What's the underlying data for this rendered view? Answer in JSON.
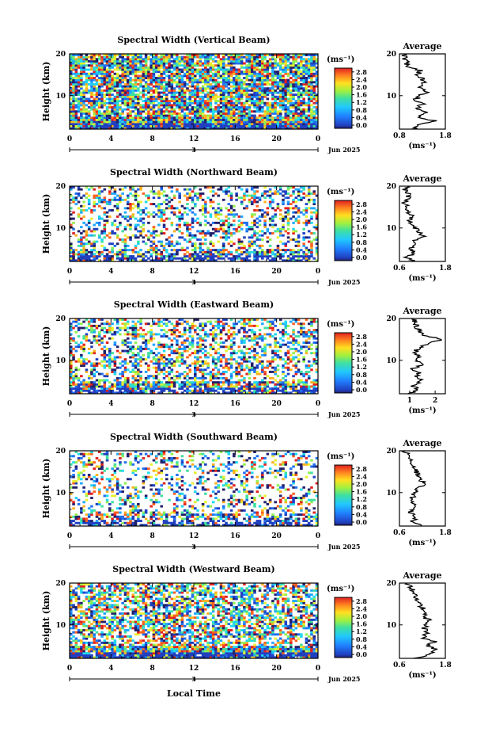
{
  "figure": {
    "xlabel": "Local Time",
    "date_label": "Jun 2025"
  },
  "chart_data": [
    {
      "type": "heatmap",
      "title": "Spectral Width (Vertical Beam)",
      "ylabel": "Height (km)",
      "xlim": [
        0,
        24
      ],
      "ylim": [
        2,
        20
      ],
      "x_ticks": [
        "0",
        "4",
        "8",
        "12",
        "16",
        "20",
        "0"
      ],
      "y_ticks": [
        {
          "v": 10,
          "label": "10"
        },
        {
          "v": 20,
          "label": "20"
        }
      ],
      "day_marker": "3",
      "colorbar": {
        "unit": "(ms⁻¹)",
        "labels": [
          "2.8",
          "2.4",
          "2.0",
          "1.6",
          "1.2",
          "0.8",
          "0.4",
          "0.0"
        ],
        "range": [
          0,
          3
        ]
      },
      "coverage": 0.85,
      "seed": 11,
      "bias": 0.5,
      "average": {
        "title": "Average",
        "xlim": [
          0.8,
          1.8
        ],
        "xticks": [
          "0.8",
          "1.8"
        ],
        "xlabel": "(ms⁻¹)",
        "profile": [
          [
            2,
            1.1
          ],
          [
            3,
            1.25
          ],
          [
            4,
            1.55
          ],
          [
            5,
            1.2
          ],
          [
            6,
            1.35
          ],
          [
            7,
            1.2
          ],
          [
            8,
            1.3
          ],
          [
            9,
            1.15
          ],
          [
            10,
            1.25
          ],
          [
            11,
            1.4
          ],
          [
            12,
            1.2
          ],
          [
            13,
            1.35
          ],
          [
            14,
            1.3
          ],
          [
            15,
            1.2
          ],
          [
            16,
            1.25
          ],
          [
            17,
            1.0
          ],
          [
            18,
            0.95
          ],
          [
            19,
            0.92
          ],
          [
            20,
            0.9
          ]
        ]
      }
    },
    {
      "type": "heatmap",
      "title": "Spectral Width (Northward Beam)",
      "ylabel": "Height (km)",
      "xlim": [
        0,
        24
      ],
      "ylim": [
        2,
        20
      ],
      "x_ticks": [
        "0",
        "4",
        "8",
        "12",
        "16",
        "20",
        "0"
      ],
      "y_ticks": [
        {
          "v": 10,
          "label": "10"
        },
        {
          "v": 20,
          "label": "20"
        }
      ],
      "day_marker": "3",
      "colorbar": {
        "unit": "(ms⁻¹)",
        "labels": [
          "2.8",
          "2.4",
          "2.0",
          "1.6",
          "1.2",
          "0.8",
          "0.4",
          "0.0"
        ],
        "range": [
          0,
          3
        ]
      },
      "coverage": 0.35,
      "seed": 23,
      "bias": 0.3,
      "average": {
        "title": "Average",
        "xlim": [
          0.6,
          1.8
        ],
        "xticks": [
          "0.6",
          "1.8"
        ],
        "xlabel": "(ms⁻¹)",
        "profile": [
          [
            2,
            0.95
          ],
          [
            3,
            0.8
          ],
          [
            4,
            1.0
          ],
          [
            5,
            0.85
          ],
          [
            6,
            1.05
          ],
          [
            7,
            0.95
          ],
          [
            8,
            1.2
          ],
          [
            9,
            1.1
          ],
          [
            10,
            1.0
          ],
          [
            11,
            0.95
          ],
          [
            12,
            0.85
          ],
          [
            13,
            0.9
          ],
          [
            14,
            0.8
          ],
          [
            15,
            0.85
          ],
          [
            16,
            0.75
          ],
          [
            17,
            0.8
          ],
          [
            18,
            0.85
          ],
          [
            19,
            0.75
          ],
          [
            20,
            0.8
          ]
        ]
      }
    },
    {
      "type": "heatmap",
      "title": "Spectral Width (Eastward Beam)",
      "ylabel": "Height (km)",
      "xlim": [
        0,
        24
      ],
      "ylim": [
        2,
        20
      ],
      "x_ticks": [
        "0",
        "4",
        "8",
        "12",
        "16",
        "20",
        "0"
      ],
      "y_ticks": [
        {
          "v": 10,
          "label": "10"
        },
        {
          "v": 20,
          "label": "20"
        }
      ],
      "day_marker": "3",
      "colorbar": {
        "unit": "(ms⁻¹)",
        "labels": [
          "2.8",
          "2.4",
          "2.0",
          "1.6",
          "1.2",
          "0.8",
          "0.4",
          "0.0"
        ],
        "range": [
          0,
          3
        ]
      },
      "coverage": 0.45,
      "seed": 37,
      "bias": 0.4,
      "average": {
        "title": "Average",
        "xlim": [
          0.6,
          2.4
        ],
        "xticks": [
          "1",
          "2"
        ],
        "xlabel": "(ms⁻¹)",
        "profile": [
          [
            2,
            1.0
          ],
          [
            3,
            1.3
          ],
          [
            4,
            1.1
          ],
          [
            5,
            1.5
          ],
          [
            6,
            1.2
          ],
          [
            7,
            1.4
          ],
          [
            8,
            1.1
          ],
          [
            9,
            1.6
          ],
          [
            10,
            1.3
          ],
          [
            11,
            1.4
          ],
          [
            12,
            1.2
          ],
          [
            13,
            1.35
          ],
          [
            14,
            1.7
          ],
          [
            15,
            2.3
          ],
          [
            16,
            1.5
          ],
          [
            17,
            1.4
          ],
          [
            18,
            1.2
          ],
          [
            19,
            1.3
          ],
          [
            20,
            1.1
          ]
        ]
      }
    },
    {
      "type": "heatmap",
      "title": "Spectral Width (Southward Beam)",
      "ylabel": "Height (km)",
      "xlim": [
        0,
        24
      ],
      "ylim": [
        2,
        20
      ],
      "x_ticks": [
        "0",
        "4",
        "8",
        "12",
        "16",
        "20",
        "0"
      ],
      "y_ticks": [
        {
          "v": 10,
          "label": "10"
        },
        {
          "v": 20,
          "label": "20"
        }
      ],
      "day_marker": "3",
      "colorbar": {
        "unit": "(ms⁻¹)",
        "labels": [
          "2.8",
          "2.4",
          "2.0",
          "1.6",
          "1.2",
          "0.8",
          "0.4",
          "0.0"
        ],
        "range": [
          0,
          3
        ]
      },
      "coverage": 0.28,
      "seed": 41,
      "bias": 0.3,
      "average": {
        "title": "Average",
        "xlim": [
          0.6,
          1.8
        ],
        "xticks": [
          "0.6",
          "1.8"
        ],
        "xlabel": "(ms⁻¹)",
        "profile": [
          [
            2,
            1.2
          ],
          [
            3,
            0.95
          ],
          [
            4,
            1.0
          ],
          [
            5,
            0.9
          ],
          [
            6,
            0.95
          ],
          [
            7,
            1.0
          ],
          [
            8,
            0.9
          ],
          [
            9,
            0.95
          ],
          [
            10,
            1.0
          ],
          [
            11,
            1.1
          ],
          [
            12,
            1.3
          ],
          [
            13,
            1.15
          ],
          [
            14,
            1.1
          ],
          [
            15,
            1.05
          ],
          [
            16,
            1.0
          ],
          [
            17,
            0.95
          ],
          [
            18,
            0.9
          ],
          [
            19,
            0.8
          ],
          [
            20,
            0.75
          ]
        ]
      }
    },
    {
      "type": "heatmap",
      "title": "Spectral Width (Westward Beam)",
      "ylabel": "Height (km)",
      "xlim": [
        0,
        24
      ],
      "ylim": [
        2,
        20
      ],
      "x_ticks": [
        "0",
        "4",
        "8",
        "12",
        "16",
        "20",
        "0"
      ],
      "y_ticks": [
        {
          "v": 10,
          "label": "10"
        },
        {
          "v": 20,
          "label": "20"
        }
      ],
      "day_marker": "3",
      "colorbar": {
        "unit": "(ms⁻¹)",
        "labels": [
          "2.8",
          "2.4",
          "2.0",
          "1.6",
          "1.2",
          "0.8",
          "0.4",
          "0.0"
        ],
        "range": [
          0,
          3
        ]
      },
      "coverage": 0.6,
      "seed": 53,
      "bias": 0.55,
      "average": {
        "title": "Average",
        "xlim": [
          0.6,
          1.8
        ],
        "xticks": [
          "0.6",
          "1.8"
        ],
        "xlabel": "(ms⁻¹)",
        "profile": [
          [
            2,
            1.0
          ],
          [
            3,
            1.4
          ],
          [
            4,
            1.6
          ],
          [
            5,
            1.3
          ],
          [
            6,
            1.5
          ],
          [
            7,
            1.2
          ],
          [
            8,
            1.35
          ],
          [
            9,
            1.25
          ],
          [
            10,
            1.3
          ],
          [
            11,
            1.4
          ],
          [
            12,
            1.2
          ],
          [
            13,
            1.3
          ],
          [
            14,
            1.2
          ],
          [
            15,
            1.1
          ],
          [
            16,
            1.05
          ],
          [
            17,
            1.0
          ],
          [
            18,
            0.95
          ],
          [
            19,
            0.9
          ],
          [
            20,
            0.8
          ]
        ]
      }
    }
  ]
}
